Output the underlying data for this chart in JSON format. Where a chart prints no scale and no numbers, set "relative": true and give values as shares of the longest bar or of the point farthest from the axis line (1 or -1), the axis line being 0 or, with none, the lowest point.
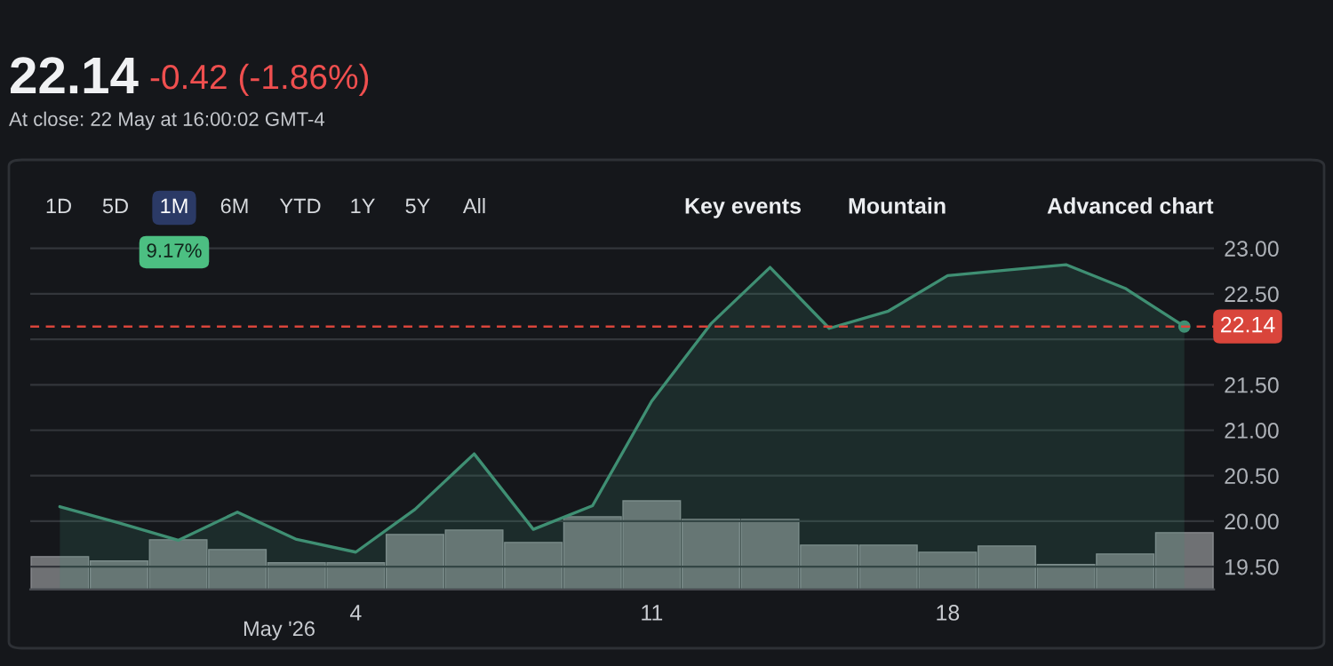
{
  "chart_data": [
    {
      "type": "area",
      "categories": [
        null,
        null,
        null,
        null,
        null,
        "4",
        null,
        null,
        null,
        null,
        "11",
        null,
        null,
        null,
        null,
        "18",
        null,
        null,
        null,
        null
      ],
      "series": [
        {
          "color": "#3f8f73",
          "values": [
            20.16,
            19.98,
            19.79,
            20.1,
            19.8,
            19.66,
            20.13,
            20.74,
            19.91,
            20.17,
            21.32,
            22.17,
            22.79,
            22.12,
            22.31,
            22.7,
            22.76,
            22.82,
            22.56,
            22.14
          ]
        }
      ],
      "ylim": [
        19.25,
        23.05
      ],
      "yticks": [
        {
          "value": 19.5,
          "label": "19.50"
        },
        {
          "value": 20.0,
          "label": "20.00"
        },
        {
          "value": 20.5,
          "label": "20.50"
        },
        {
          "value": 21.0,
          "label": "21.00"
        },
        {
          "value": 21.5,
          "label": "21.50"
        },
        {
          "value": 22.0,
          "label": null
        },
        {
          "value": 22.5,
          "label": "22.50"
        },
        {
          "value": 23.0,
          "label": "23.00"
        }
      ],
      "grid": "y",
      "tick_labels": "y",
      "ref_lines": [
        {
          "axis": "y",
          "value": 22.14,
          "label": "22.14",
          "color": "#d9453b",
          "line_style": "dashed"
        }
      ],
      "annotations": [
        "22.14",
        "-0.42 (-1.86%)",
        "At close: 22 May at 16:00:02 GMT-4",
        "1D",
        "5D",
        "1M",
        "6M",
        "YTD",
        "1Y",
        "5Y",
        "All",
        "9.17%",
        "Key events",
        "Mountain",
        "Advanced chart",
        "May '26"
      ]
    },
    {
      "type": "bar",
      "relative": true,
      "tick_labels": "x",
      "categories": [
        null,
        null,
        null,
        null,
        null,
        "4",
        null,
        null,
        null,
        null,
        "11",
        null,
        null,
        null,
        null,
        "18",
        null,
        null,
        null,
        null
      ],
      "series": [
        {
          "color": "#6f7174",
          "values": [
            0.37,
            0.32,
            0.56,
            0.45,
            0.3,
            0.3,
            0.62,
            0.67,
            0.53,
            0.82,
            1,
            0.79,
            0.79,
            0.5,
            0.5,
            0.42,
            0.49,
            0.28,
            0.4,
            0.64
          ]
        }
      ]
    }
  ]
}
